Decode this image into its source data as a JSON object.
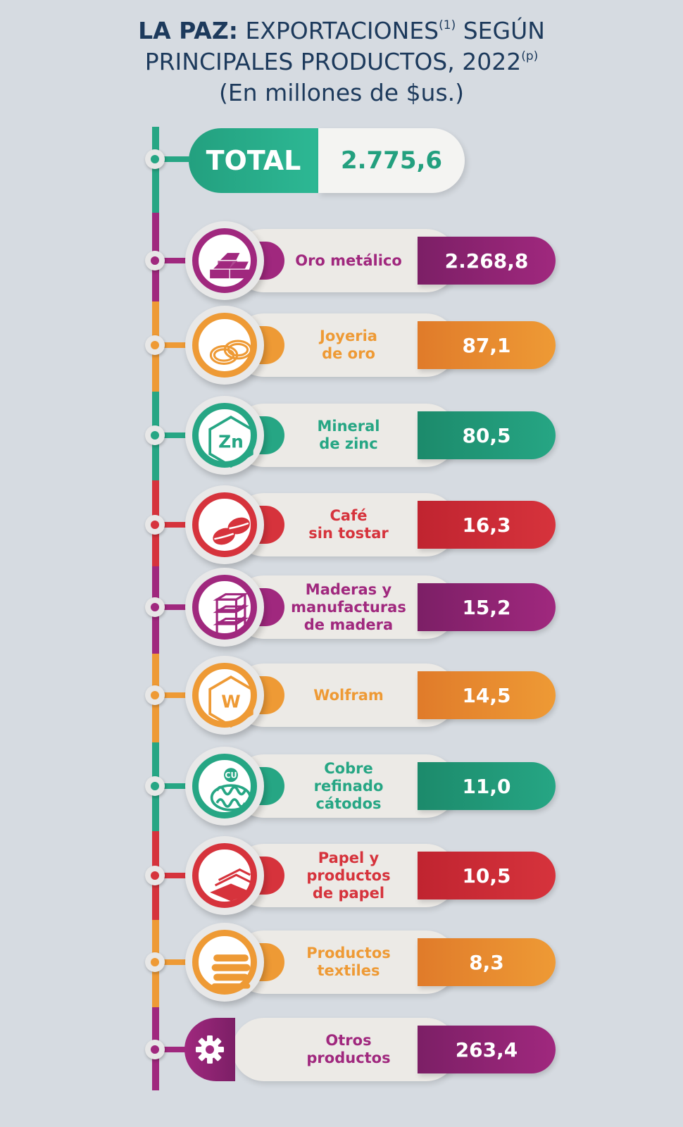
{
  "title": {
    "bold": "LA PAZ:",
    "part1": " EXPORTACIONES",
    "sup1": "(1)",
    "part2": " SEGÚN",
    "line2": "PRINCIPALES PRODUCTOS, 2022",
    "sup2": "(p)",
    "line3": "(En millones de $us.)"
  },
  "total": {
    "label": "TOTAL",
    "value": "2.775,6"
  },
  "colors": {
    "purple": "#a0287e",
    "orange": "#ee9a35",
    "green": "#26a684",
    "red": "#d6333c"
  },
  "chart_data": {
    "type": "table",
    "unit": "(En millones de $us.)",
    "total": 2775.6,
    "categories": [
      "Oro metálico",
      "Joyeria de oro",
      "Mineral de zinc",
      "Café sin tostar",
      "Maderas y manufacturas de madera",
      "Wolfram",
      "Cobre refinado cátodos",
      "Papel y productos de papel",
      "Productos textiles",
      "Otros productos"
    ],
    "values": [
      2268.8,
      87.1,
      80.5,
      16.3,
      15.2,
      14.5,
      11.0,
      10.5,
      8.3,
      263.4
    ]
  },
  "items": [
    {
      "lines": [
        "Oro metálico"
      ],
      "value": "2.268,8",
      "color": "purple",
      "icon": "gold-bars-icon"
    },
    {
      "lines": [
        "Joyeria",
        "de oro"
      ],
      "value": "87,1",
      "color": "orange",
      "icon": "rings-icon"
    },
    {
      "lines": [
        "Mineral",
        "de zinc"
      ],
      "value": "80,5",
      "color": "green",
      "icon": "zinc-hexagon-icon",
      "icon_text": "Zn"
    },
    {
      "lines": [
        "Café",
        "sin tostar"
      ],
      "value": "16,3",
      "color": "red",
      "icon": "coffee-beans-icon"
    },
    {
      "lines": [
        "Maderas y",
        "manufacturas",
        "de madera"
      ],
      "value": "15,2",
      "color": "purple",
      "icon": "wood-planks-icon"
    },
    {
      "lines": [
        "Wolfram"
      ],
      "value": "14,5",
      "color": "orange",
      "icon": "wolfram-hexagon-icon",
      "icon_text": "W"
    },
    {
      "lines": [
        "Cobre",
        "refinado",
        "cátodos"
      ],
      "value": "11,0",
      "color": "green",
      "icon": "copper-coil-icon",
      "icon_text": "CU"
    },
    {
      "lines": [
        "Papel y",
        "productos",
        "de papel"
      ],
      "value": "10,5",
      "color": "red",
      "icon": "paper-sheets-icon"
    },
    {
      "lines": [
        "Productos",
        "textiles"
      ],
      "value": "8,3",
      "color": "orange",
      "icon": "textiles-icon"
    },
    {
      "lines": [
        "Otros",
        "productos"
      ],
      "value": "263,4",
      "color": "purple",
      "icon": "gear-icon"
    }
  ]
}
